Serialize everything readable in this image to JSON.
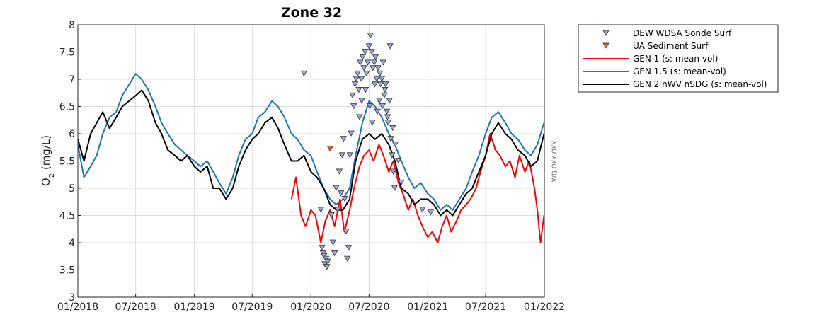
{
  "chart_data": {
    "type": "line",
    "title": "Zone 32",
    "ylabel_main": "O",
    "ylabel_sub": "2",
    "ylabel_units": " (mg/L)",
    "side_label": "WQ OXY OXY",
    "xlim": [
      "2018-01-01",
      "2022-01-01"
    ],
    "xticks": [
      "01/2018",
      "07/2018",
      "01/2019",
      "07/2019",
      "01/2020",
      "07/2020",
      "01/2021",
      "07/2021",
      "01/2022"
    ],
    "ylim": [
      3,
      8
    ],
    "yticks": [
      "3",
      "3.5",
      "4",
      "4.5",
      "5",
      "5.5",
      "6",
      "6.5",
      "7",
      "7.5",
      "8"
    ],
    "grid": true,
    "legend_position": "outside-right",
    "series": [
      {
        "name": "DEW WDSA Sonde Surf",
        "kind": "marker",
        "marker": "down-triangle",
        "color": "#9aa5d8",
        "edge": "#333333",
        "x": [
          "2019-12-10",
          "2020-02-01",
          "2020-02-05",
          "2020-02-08",
          "2020-02-11",
          "2020-02-14",
          "2020-02-17",
          "2020-02-20",
          "2020-02-23",
          "2020-03-05",
          "2020-03-10",
          "2020-03-15",
          "2020-03-20",
          "2020-03-25",
          "2020-03-30",
          "2020-04-04",
          "2020-04-08",
          "2020-04-12",
          "2020-04-16",
          "2020-04-20",
          "2020-04-24",
          "2020-04-28",
          "2020-05-02",
          "2020-05-06",
          "2020-05-10",
          "2020-05-14",
          "2020-05-18",
          "2020-05-22",
          "2020-05-26",
          "2020-05-30",
          "2020-06-03",
          "2020-06-07",
          "2020-06-11",
          "2020-06-15",
          "2020-06-19",
          "2020-06-23",
          "2020-06-27",
          "2020-07-01",
          "2020-07-05",
          "2020-07-09",
          "2020-07-13",
          "2020-07-17",
          "2020-07-21",
          "2020-07-25",
          "2020-07-29",
          "2020-08-02",
          "2020-08-06",
          "2020-08-10",
          "2020-08-14",
          "2020-08-18",
          "2020-08-22",
          "2020-08-26",
          "2020-08-30",
          "2020-09-03",
          "2020-09-07",
          "2020-09-11",
          "2020-09-15",
          "2020-09-19",
          "2020-06-01",
          "2020-06-08",
          "2020-06-20",
          "2020-07-03",
          "2020-07-11",
          "2020-07-19",
          "2020-07-27",
          "2020-08-04",
          "2020-08-12",
          "2020-08-20",
          "2020-08-28",
          "2020-09-05",
          "2020-09-13",
          "2020-09-21",
          "2020-10-01",
          "2020-10-10",
          "2020-12-15",
          "2021-01-10"
        ],
        "values": [
          7.1,
          4.6,
          3.9,
          3.8,
          3.75,
          3.6,
          3.7,
          3.55,
          3.65,
          4.5,
          4.0,
          3.8,
          5.0,
          4.6,
          5.3,
          4.9,
          5.6,
          5.9,
          4.8,
          4.2,
          3.7,
          3.9,
          5.6,
          6.0,
          6.7,
          6.5,
          6.9,
          7.0,
          7.1,
          6.8,
          7.3,
          7.0,
          7.4,
          7.2,
          7.5,
          7.1,
          7.3,
          7.6,
          7.8,
          7.5,
          7.2,
          7.3,
          7.4,
          7.0,
          7.2,
          6.6,
          6.9,
          7.0,
          7.3,
          6.7,
          6.9,
          6.4,
          6.2,
          6.6,
          5.9,
          5.6,
          5.3,
          5.0,
          6.3,
          6.6,
          6.8,
          6.5,
          6.2,
          6.9,
          6.4,
          7.1,
          6.5,
          6.8,
          6.3,
          7.6,
          6.1,
          5.8,
          5.5,
          5.1,
          4.6,
          4.55
        ]
      },
      {
        "name": "UA Sediment Surf",
        "kind": "marker",
        "marker": "down-triangle",
        "color": "#d9622b",
        "edge": "#333333",
        "x": [
          "2020-03-01"
        ],
        "values": [
          5.72
        ]
      },
      {
        "name": "GEN 1 (s: mean-vol)",
        "kind": "line",
        "color": "#ff0000",
        "x": [
          "2019-11-01",
          "2019-11-15",
          "2019-12-01",
          "2019-12-15",
          "2020-01-01",
          "2020-01-15",
          "2020-02-01",
          "2020-02-15",
          "2020-03-01",
          "2020-03-15",
          "2020-04-01",
          "2020-04-15",
          "2020-05-01",
          "2020-05-15",
          "2020-06-01",
          "2020-06-15",
          "2020-07-01",
          "2020-07-15",
          "2020-08-01",
          "2020-08-15",
          "2020-09-01",
          "2020-09-15",
          "2020-10-01",
          "2020-10-15",
          "2020-11-01",
          "2020-11-15",
          "2020-12-01",
          "2020-12-15",
          "2021-01-01",
          "2021-01-15",
          "2021-02-01",
          "2021-02-15",
          "2021-03-01",
          "2021-03-15",
          "2021-04-01",
          "2021-04-15",
          "2021-05-01",
          "2021-05-15",
          "2021-06-01",
          "2021-06-15",
          "2021-07-01",
          "2021-07-15",
          "2021-08-01",
          "2021-08-15",
          "2021-09-01",
          "2021-09-15",
          "2021-10-01",
          "2021-10-15",
          "2021-11-01",
          "2021-11-15",
          "2021-12-01",
          "2021-12-10",
          "2021-12-20",
          "2021-12-31"
        ],
        "values": [
          4.8,
          5.2,
          4.5,
          4.3,
          4.6,
          4.5,
          4.0,
          4.4,
          4.6,
          4.3,
          4.8,
          4.2,
          4.6,
          5.0,
          5.4,
          5.6,
          5.7,
          5.5,
          5.8,
          5.6,
          5.3,
          5.5,
          5.1,
          4.9,
          4.6,
          4.8,
          4.5,
          4.3,
          4.1,
          4.2,
          4.0,
          4.3,
          4.5,
          4.2,
          4.4,
          4.6,
          4.7,
          4.8,
          5.0,
          5.3,
          5.6,
          6.0,
          5.7,
          5.6,
          5.4,
          5.5,
          5.2,
          5.6,
          5.3,
          5.5,
          5.0,
          4.6,
          4.0,
          4.5
        ]
      },
      {
        "name": "GEN 1.5 (s: mean-vol)",
        "kind": "line",
        "color": "#1f77b4",
        "x": [
          "2018-01-01",
          "2018-01-20",
          "2018-02-10",
          "2018-03-01",
          "2018-03-20",
          "2018-04-10",
          "2018-05-01",
          "2018-05-20",
          "2018-06-10",
          "2018-07-01",
          "2018-07-20",
          "2018-08-10",
          "2018-09-01",
          "2018-09-20",
          "2018-10-10",
          "2018-11-01",
          "2018-11-20",
          "2018-12-10",
          "2019-01-01",
          "2019-01-20",
          "2019-02-10",
          "2019-03-01",
          "2019-03-20",
          "2019-04-10",
          "2019-05-01",
          "2019-05-20",
          "2019-06-10",
          "2019-07-01",
          "2019-07-20",
          "2019-08-10",
          "2019-09-01",
          "2019-09-20",
          "2019-10-10",
          "2019-11-01",
          "2019-11-20",
          "2019-12-10",
          "2020-01-01",
          "2020-01-20",
          "2020-02-10",
          "2020-03-01",
          "2020-03-20",
          "2020-04-10",
          "2020-05-01",
          "2020-05-20",
          "2020-06-10",
          "2020-07-01",
          "2020-07-20",
          "2020-08-10",
          "2020-09-01",
          "2020-09-20",
          "2020-10-10",
          "2020-11-01",
          "2020-11-20",
          "2020-12-10",
          "2021-01-01",
          "2021-01-20",
          "2021-02-10",
          "2021-03-01",
          "2021-03-20",
          "2021-04-10",
          "2021-05-01",
          "2021-05-20",
          "2021-06-10",
          "2021-07-01",
          "2021-07-20",
          "2021-08-10",
          "2021-09-01",
          "2021-09-20",
          "2021-10-10",
          "2021-11-01",
          "2021-11-20",
          "2021-12-10",
          "2021-12-31"
        ],
        "values": [
          5.8,
          5.2,
          5.4,
          5.6,
          6.0,
          6.3,
          6.4,
          6.7,
          6.9,
          7.1,
          7.0,
          6.8,
          6.5,
          6.2,
          6.0,
          5.8,
          5.7,
          5.6,
          5.5,
          5.4,
          5.5,
          5.3,
          5.1,
          4.9,
          5.2,
          5.6,
          5.9,
          6.0,
          6.3,
          6.4,
          6.6,
          6.5,
          6.3,
          6.0,
          5.9,
          5.7,
          5.6,
          5.3,
          5.0,
          4.8,
          4.7,
          4.8,
          5.0,
          5.6,
          6.2,
          6.6,
          6.5,
          6.3,
          6.0,
          5.8,
          5.5,
          5.2,
          5.0,
          5.1,
          4.9,
          4.8,
          4.6,
          4.7,
          4.6,
          4.8,
          5.0,
          5.3,
          5.6,
          6.0,
          6.3,
          6.4,
          6.2,
          6.0,
          5.9,
          5.7,
          5.6,
          5.8,
          6.2
        ]
      },
      {
        "name": "GEN 2 nWV nSDG (s: mean-vol)",
        "kind": "line",
        "color": "#000000",
        "x": [
          "2018-01-01",
          "2018-01-20",
          "2018-02-10",
          "2018-03-01",
          "2018-03-20",
          "2018-04-10",
          "2018-05-01",
          "2018-05-20",
          "2018-06-10",
          "2018-07-01",
          "2018-07-20",
          "2018-08-10",
          "2018-09-01",
          "2018-09-20",
          "2018-10-10",
          "2018-11-01",
          "2018-11-20",
          "2018-12-10",
          "2019-01-01",
          "2019-01-20",
          "2019-02-10",
          "2019-03-01",
          "2019-03-20",
          "2019-04-10",
          "2019-05-01",
          "2019-05-20",
          "2019-06-10",
          "2019-07-01",
          "2019-07-20",
          "2019-08-10",
          "2019-09-01",
          "2019-09-20",
          "2019-10-10",
          "2019-11-01",
          "2019-11-20",
          "2019-12-10",
          "2020-01-01",
          "2020-01-20",
          "2020-02-10",
          "2020-03-01",
          "2020-03-20",
          "2020-04-10",
          "2020-05-01",
          "2020-05-20",
          "2020-06-10",
          "2020-07-01",
          "2020-07-20",
          "2020-08-10",
          "2020-09-01",
          "2020-09-20",
          "2020-10-10",
          "2020-11-01",
          "2020-11-20",
          "2020-12-10",
          "2021-01-01",
          "2021-01-20",
          "2021-02-10",
          "2021-03-01",
          "2021-03-20",
          "2021-04-10",
          "2021-05-01",
          "2021-05-20",
          "2021-06-10",
          "2021-07-01",
          "2021-07-20",
          "2021-08-10",
          "2021-09-01",
          "2021-09-20",
          "2021-10-10",
          "2021-11-01",
          "2021-11-20",
          "2021-12-10",
          "2021-12-31"
        ],
        "values": [
          5.9,
          5.5,
          6.0,
          6.2,
          6.4,
          6.1,
          6.3,
          6.5,
          6.6,
          6.7,
          6.8,
          6.6,
          6.2,
          6.0,
          5.7,
          5.6,
          5.5,
          5.6,
          5.4,
          5.3,
          5.4,
          5.0,
          5.0,
          4.8,
          5.0,
          5.4,
          5.7,
          5.9,
          6.0,
          6.2,
          6.3,
          6.1,
          5.8,
          5.5,
          5.5,
          5.6,
          5.3,
          5.2,
          5.0,
          4.7,
          4.6,
          4.6,
          4.8,
          5.5,
          5.9,
          6.0,
          5.9,
          6.0,
          5.8,
          5.5,
          5.0,
          4.9,
          4.7,
          4.8,
          4.8,
          4.7,
          4.5,
          4.6,
          4.5,
          4.7,
          4.9,
          5.0,
          5.3,
          5.6,
          6.0,
          6.2,
          6.0,
          5.9,
          5.7,
          5.6,
          5.4,
          5.5,
          6.0
        ]
      }
    ]
  }
}
